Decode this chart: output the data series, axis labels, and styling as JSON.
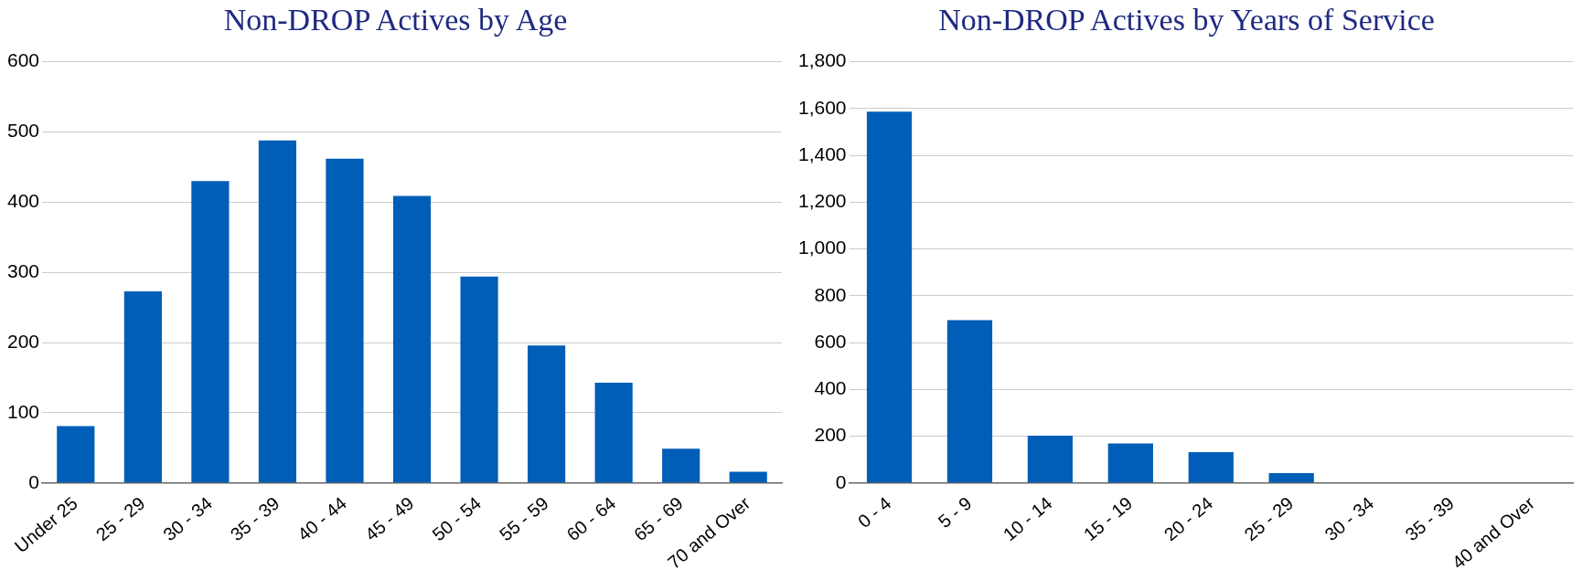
{
  "chart_data": [
    {
      "type": "bar",
      "title": "Non-DROP Actives by Age",
      "categories": [
        "Under 25",
        "25 - 29",
        "30 - 34",
        "35 - 39",
        "40 - 44",
        "45 - 49",
        "50 - 54",
        "55 - 59",
        "60 - 64",
        "65 - 69",
        "70 and Over"
      ],
      "values": [
        81,
        273,
        430,
        488,
        462,
        409,
        294,
        196,
        143,
        49,
        16
      ],
      "color": "#005eb8",
      "ylim": [
        0,
        600
      ],
      "yticks": [
        0,
        100,
        200,
        300,
        400,
        500,
        600
      ],
      "grid": "y",
      "legend": false
    },
    {
      "type": "bar",
      "title": "Non-DROP Actives by Years of Service",
      "categories": [
        "0 - 4",
        "5 - 9",
        "10 - 14",
        "15 - 19",
        "20 - 24",
        "25 - 29",
        "30 - 34",
        "35 - 39",
        "40 and Over"
      ],
      "values": [
        1587,
        696,
        202,
        169,
        132,
        42,
        null,
        null,
        null
      ],
      "color": "#005eb8",
      "ylim": [
        0,
        1800
      ],
      "yticks": [
        {
          "value": 0,
          "label": "0"
        },
        {
          "value": 200,
          "label": "200"
        },
        {
          "value": 400,
          "label": "400"
        },
        {
          "value": 600,
          "label": "600"
        },
        {
          "value": 800,
          "label": "800"
        },
        {
          "value": 1000,
          "label": "1,000"
        },
        {
          "value": 1200,
          "label": "1,200"
        },
        {
          "value": 1400,
          "label": "1,400"
        },
        {
          "value": 1600,
          "label": "1,600"
        },
        {
          "value": 1800,
          "label": "1,800"
        }
      ],
      "grid": "y",
      "legend": false
    }
  ]
}
